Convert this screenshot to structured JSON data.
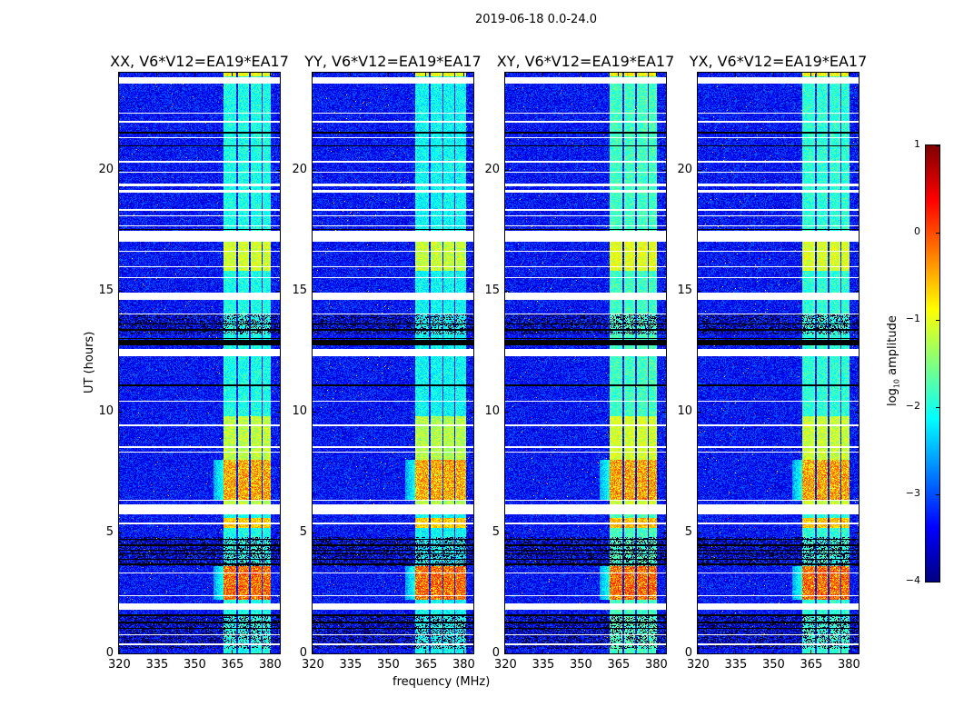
{
  "chart_data": {
    "type": "heatmap",
    "title": "2019-06-18 0.0-24.0",
    "xlabel": "frequency (MHz)",
    "ylabel": "UT (hours)",
    "xlim": [
      320,
      384
    ],
    "ylim": [
      0,
      24
    ],
    "xticks": [
      320,
      335,
      350,
      365,
      380
    ],
    "xtick_labels": [
      "320",
      "335",
      "350",
      "365",
      "380"
    ],
    "yticks": [
      0,
      5,
      10,
      15,
      20
    ],
    "ytick_labels": [
      "0",
      "5",
      "10",
      "15",
      "20"
    ],
    "colormap": "jet",
    "colorbar": {
      "label_main": "log",
      "label_sub": "10",
      "label_rest": " amplitude",
      "range": [
        -4,
        1
      ],
      "ticks": [
        1,
        0,
        -1,
        -2,
        -3,
        -4
      ],
      "tick_labels": [
        "1",
        "0",
        "−1",
        "−2",
        "−3",
        "−4"
      ]
    },
    "background_level": -3.3,
    "flagged_white_hours": [
      [
        23.55,
        23.8
      ],
      [
        22.3,
        22.35
      ],
      [
        21.95,
        22.0
      ],
      [
        21.3,
        21.35
      ],
      [
        20.3,
        20.35
      ],
      [
        19.85,
        19.9
      ],
      [
        19.3,
        19.4
      ],
      [
        19.05,
        19.15
      ],
      [
        18.3,
        18.35
      ],
      [
        18.05,
        18.1
      ],
      [
        17.65,
        17.7
      ],
      [
        17.0,
        17.45
      ],
      [
        16.6,
        16.65
      ],
      [
        15.95,
        16.0
      ],
      [
        15.5,
        15.55
      ],
      [
        14.6,
        14.9
      ],
      [
        14.0,
        14.05
      ],
      [
        12.3,
        12.6
      ],
      [
        10.4,
        10.45
      ],
      [
        9.4,
        9.45
      ],
      [
        8.5,
        8.55
      ],
      [
        8.3,
        8.35
      ],
      [
        6.3,
        6.35
      ],
      [
        5.75,
        6.15
      ],
      [
        5.35,
        5.4
      ],
      [
        3.3,
        3.35
      ],
      [
        2.35,
        2.4
      ],
      [
        1.8,
        2.05
      ],
      [
        0.75,
        0.8
      ],
      [
        0.35,
        0.4
      ]
    ],
    "dead_black_hours": [
      [
        21.5,
        21.55
      ],
      [
        20.95,
        21.0
      ],
      [
        17.5,
        17.55
      ],
      [
        13.6,
        13.65
      ],
      [
        13.35,
        13.4
      ],
      [
        13.0,
        13.05
      ],
      [
        12.75,
        12.95
      ],
      [
        11.05,
        11.1
      ],
      [
        4.7,
        4.75
      ],
      [
        4.45,
        4.5
      ],
      [
        4.25,
        4.3
      ],
      [
        4.1,
        4.15
      ],
      [
        3.85,
        3.9
      ],
      [
        3.65,
        3.7
      ],
      [
        1.55,
        1.6
      ],
      [
        1.25,
        1.3
      ],
      [
        1.0,
        1.05
      ]
    ],
    "noisy_hours": [
      [
        13.2,
        14.0
      ],
      [
        3.6,
        4.8
      ],
      [
        0.2,
        1.6
      ]
    ],
    "rfi_events": [
      {
        "hours": [
          0,
          24
        ],
        "level": -2.0
      },
      {
        "hours": [
          15.8,
          17.0
        ],
        "level": -1.1
      },
      {
        "hours": [
          6.1,
          9.8
        ],
        "level": -1.2
      },
      {
        "hours": [
          6.3,
          8.0
        ],
        "level": -0.3
      },
      {
        "hours": [
          5.2,
          5.6
        ],
        "level": -0.6
      },
      {
        "hours": [
          2.2,
          3.6
        ],
        "level": 0.0
      },
      {
        "hours": [
          23.85,
          24
        ],
        "level": -0.9
      }
    ],
    "panels": [
      {
        "title": "XX, V6*V12=EA19*EA17",
        "subbands_mhz": [
          [
            361.5,
            366.6
          ],
          [
            367.2,
            371.8
          ],
          [
            372.4,
            376.6
          ],
          [
            377.1,
            380.5
          ]
        ],
        "strength": 1.0
      },
      {
        "title": "YY, V6*V12=EA19*EA17",
        "subbands_mhz": [
          [
            361.0,
            366.4
          ],
          [
            367.0,
            371.6
          ],
          [
            372.2,
            376.4
          ],
          [
            376.9,
            381.0
          ]
        ],
        "strength": 1.05
      },
      {
        "title": "XY, V6*V12=EA19*EA17",
        "subbands_mhz": [
          [
            361.5,
            366.6
          ],
          [
            367.2,
            371.8
          ],
          [
            372.4,
            376.6
          ],
          [
            377.1,
            380.5
          ]
        ],
        "strength": 0.9
      },
      {
        "title": "YX, V6*V12=EA19*EA17",
        "subbands_mhz": [
          [
            361.5,
            366.6
          ],
          [
            367.2,
            371.8
          ],
          [
            372.4,
            376.6
          ],
          [
            377.1,
            380.5
          ]
        ],
        "strength": 0.95
      }
    ]
  }
}
